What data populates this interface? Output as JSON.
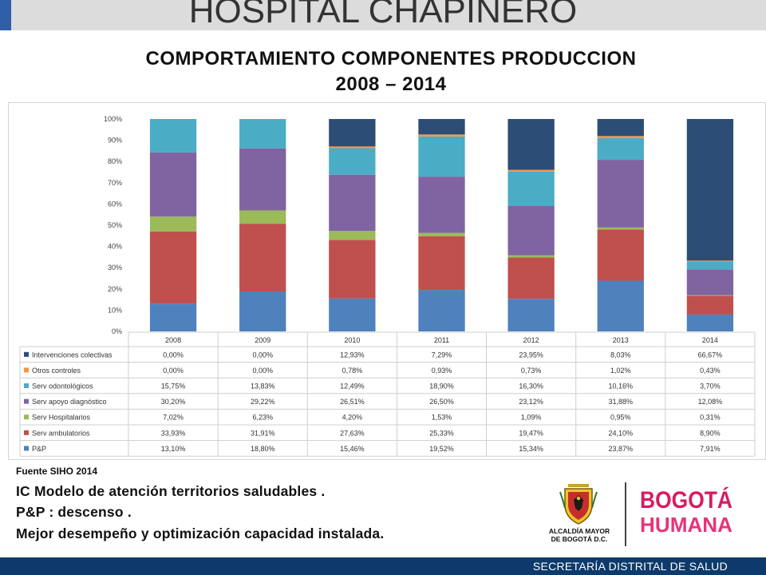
{
  "header": {
    "hospital_title": "HOSPITAL CHAPINERO",
    "title_line1": "COMPORTAMIENTO COMPONENTES PRODUCCION",
    "title_line2": "2008 – 2014"
  },
  "colors": {
    "Intervenciones colectivas": "#2c4d75",
    "Otros controles": "#f79646",
    "Serv odontológicos": "#4bacc6",
    "Serv apoyo diagnóstico": "#8064a2",
    "Serv Hospitalarios": "#9bbb59",
    "Serv ambulatorios": "#c0504d",
    "P&P": "#4f81bd"
  },
  "chart_data": {
    "type": "bar",
    "stacked": true,
    "percent": true,
    "categories": [
      "2008",
      "2009",
      "2010",
      "2011",
      "2012",
      "2013",
      "2014"
    ],
    "ylim": [
      0,
      100
    ],
    "yticks": [
      "0%",
      "10%",
      "20%",
      "30%",
      "40%",
      "50%",
      "60%",
      "70%",
      "80%",
      "90%",
      "100%"
    ],
    "grid": false,
    "legend": "data-table",
    "series": [
      {
        "name": "P&P",
        "values": [
          13.1,
          18.8,
          15.46,
          19.52,
          15.34,
          23.87,
          7.91
        ],
        "labels": [
          "13,10%",
          "18,80%",
          "15,46%",
          "19,52%",
          "15,34%",
          "23,87%",
          "7,91%"
        ]
      },
      {
        "name": "Serv ambulatorios",
        "values": [
          33.93,
          31.91,
          27.63,
          25.33,
          19.47,
          24.1,
          8.9
        ],
        "labels": [
          "33,93%",
          "31,91%",
          "27,63%",
          "25,33%",
          "19,47%",
          "24,10%",
          "8,90%"
        ]
      },
      {
        "name": "Serv Hospitalarios",
        "values": [
          7.02,
          6.23,
          4.2,
          1.53,
          1.09,
          0.95,
          0.31
        ],
        "labels": [
          "7,02%",
          "6,23%",
          "4,20%",
          "1,53%",
          "1,09%",
          "0,95%",
          "0,31%"
        ]
      },
      {
        "name": "Serv apoyo diagnóstico",
        "values": [
          30.2,
          29.22,
          26.51,
          26.5,
          23.12,
          31.88,
          12.08
        ],
        "labels": [
          "30,20%",
          "29,22%",
          "26,51%",
          "26,50%",
          "23,12%",
          "31,88%",
          "12,08%"
        ]
      },
      {
        "name": "Serv odontológicos",
        "values": [
          15.75,
          13.83,
          12.49,
          18.9,
          16.3,
          10.16,
          3.7
        ],
        "labels": [
          "15,75%",
          "13,83%",
          "12,49%",
          "18,90%",
          "16,30%",
          "10,16%",
          "3,70%"
        ]
      },
      {
        "name": "Otros controles",
        "values": [
          0.0,
          0.0,
          0.78,
          0.93,
          0.73,
          1.02,
          0.43
        ],
        "labels": [
          "0,00%",
          "0,00%",
          "0,78%",
          "0,93%",
          "0,73%",
          "1,02%",
          "0,43%"
        ]
      },
      {
        "name": "Intervenciones colectivas",
        "values": [
          0.0,
          0.0,
          12.93,
          7.29,
          23.95,
          8.03,
          66.67
        ],
        "labels": [
          "0,00%",
          "0,00%",
          "12,93%",
          "7,29%",
          "23,95%",
          "8,03%",
          "66,67%"
        ]
      }
    ]
  },
  "notes": {
    "source": "Fuente SIHO 2014",
    "bullets": [
      "IC Modelo de atención territorios saludables .",
      "P&P : descenso .",
      "Mejor desempeño y optimización capacidad instalada."
    ]
  },
  "logos": {
    "alcaldia_line1": "ALCALDÍA MAYOR",
    "alcaldia_line2": "DE BOGOTÁ D.C.",
    "brand_line1": "BOGOTÁ",
    "brand_line2": "HUMANA",
    "crest_icon": "coat-of-arms-icon"
  },
  "footer": {
    "text": "SECRETARÍA DISTRITAL DE SALUD"
  }
}
